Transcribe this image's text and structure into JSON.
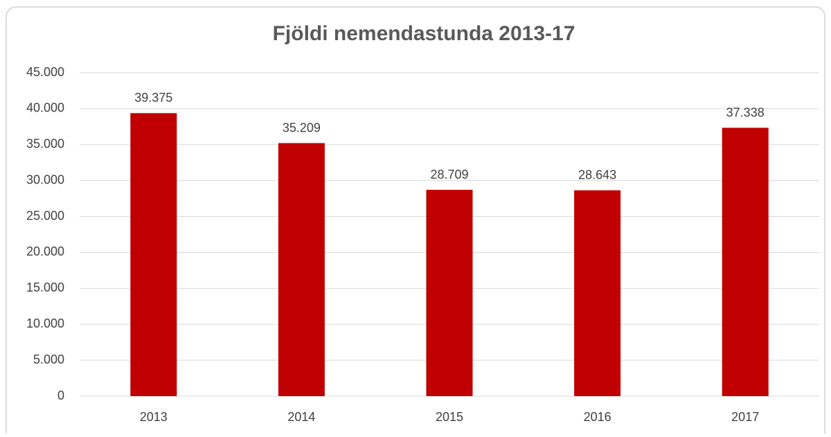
{
  "chart_data": {
    "type": "bar",
    "title": "Fjöldi nemendastunda 2013-17",
    "categories": [
      "2013",
      "2014",
      "2015",
      "2016",
      "2017"
    ],
    "values": [
      39375,
      35209,
      28709,
      28643,
      37338
    ],
    "value_labels": [
      "39.375",
      "35.209",
      "28.709",
      "28.643",
      "37.338"
    ],
    "color": "#c00000",
    "ylim": [
      0,
      45000
    ],
    "yticks": [
      0,
      {
        "value": 5000,
        "label": "5.000"
      },
      {
        "value": 10000,
        "label": "10.000"
      },
      {
        "value": 15000,
        "label": "15.000"
      },
      {
        "value": 20000,
        "label": "20.000"
      },
      {
        "value": 25000,
        "label": "25.000"
      },
      {
        "value": 30000,
        "label": "30.000"
      },
      {
        "value": 35000,
        "label": "35.000"
      },
      {
        "value": 40000,
        "label": "40.000"
      },
      {
        "value": 45000,
        "label": "45.000"
      }
    ],
    "grid": true
  }
}
